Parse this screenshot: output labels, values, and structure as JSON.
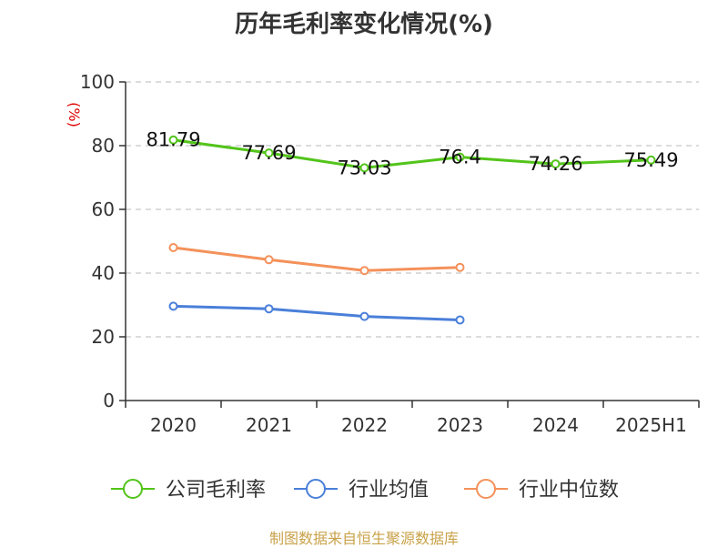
{
  "chart_data": {
    "type": "line",
    "title": "历年毛利率变化情况(%)",
    "ylabel": "(%)",
    "xlabel": "",
    "categories": [
      "2020",
      "2021",
      "2022",
      "2023",
      "2024",
      "2025H1"
    ],
    "ylim": [
      0,
      100
    ],
    "yticks": [
      0,
      20,
      40,
      60,
      80,
      100
    ],
    "grid": true,
    "legend_position": "bottom",
    "series": [
      {
        "name": "公司毛利率",
        "color": "#52c41a",
        "show_labels": true,
        "values": [
          81.79,
          77.69,
          73.03,
          76.4,
          74.26,
          75.49
        ]
      },
      {
        "name": "行业均值",
        "color": "#4a7fd9",
        "show_labels": false,
        "values": [
          29.6,
          28.8,
          26.4,
          25.3,
          null,
          null
        ]
      },
      {
        "name": "行业中位数",
        "color": "#f4915a",
        "show_labels": false,
        "values": [
          48.0,
          44.2,
          40.8,
          41.8,
          null,
          null
        ]
      }
    ]
  },
  "footer": {
    "source": "制图数据来自恒生聚源数据库"
  }
}
